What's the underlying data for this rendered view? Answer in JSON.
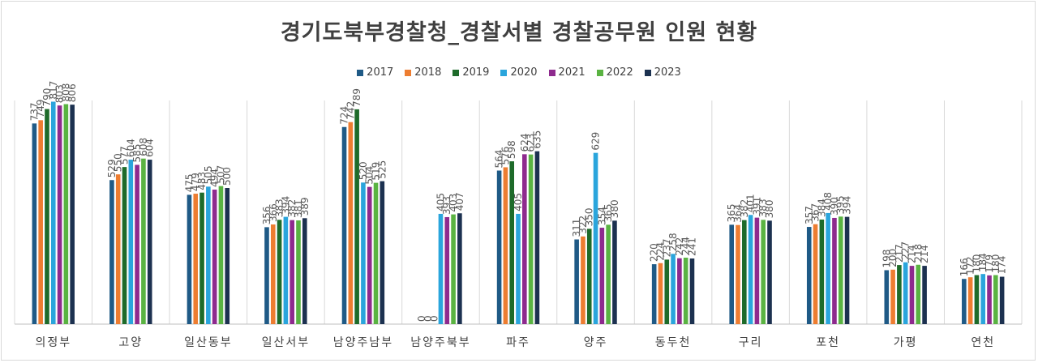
{
  "chart_data": {
    "type": "bar",
    "title": "경기도북부경찰청_경찰서별 경찰공무원 인원 현황",
    "legend_position": "top",
    "grid": false,
    "categories": [
      "의정부",
      "고양",
      "일산동부",
      "일산서부",
      "남양주남부",
      "남양주북부",
      "파주",
      "양주",
      "동두천",
      "구리",
      "포천",
      "가평",
      "연천"
    ],
    "series": [
      {
        "name": "2017",
        "color": "#1f5a86",
        "values": [
          737,
          529,
          475,
          356,
          724,
          0,
          564,
          311,
          220,
          365,
          357,
          198,
          166
        ]
      },
      {
        "name": "2018",
        "color": "#ed7d31",
        "values": [
          749,
          550,
          479,
          366,
          742,
          0,
          576,
          322,
          224,
          364,
          367,
          200,
          172
        ]
      },
      {
        "name": "2019",
        "color": "#1e6b2a",
        "values": [
          790,
          577,
          483,
          383,
          789,
          0,
          598,
          350,
          237,
          382,
          384,
          217,
          180
        ]
      },
      {
        "name": "2020",
        "color": "#2aa5dc",
        "values": [
          817,
          604,
          505,
          394,
          520,
          405,
          405,
          629,
          258,
          401,
          408,
          227,
          184
        ]
      },
      {
        "name": "2021",
        "color": "#8e2a8e",
        "values": [
          803,
          585,
          494,
          382,
          504,
          393,
          624,
          354,
          242,
          391,
          390,
          214,
          179
        ]
      },
      {
        "name": "2022",
        "color": "#5ab342",
        "values": [
          808,
          608,
          507,
          381,
          519,
          403,
          623,
          365,
          244,
          383,
          395,
          218,
          180
        ]
      },
      {
        "name": "2023",
        "color": "#1c3150",
        "values": [
          806,
          604,
          500,
          389,
          525,
          407,
          635,
          380,
          241,
          380,
          394,
          214,
          174
        ]
      }
    ],
    "ylim": [
      0,
      900
    ]
  }
}
